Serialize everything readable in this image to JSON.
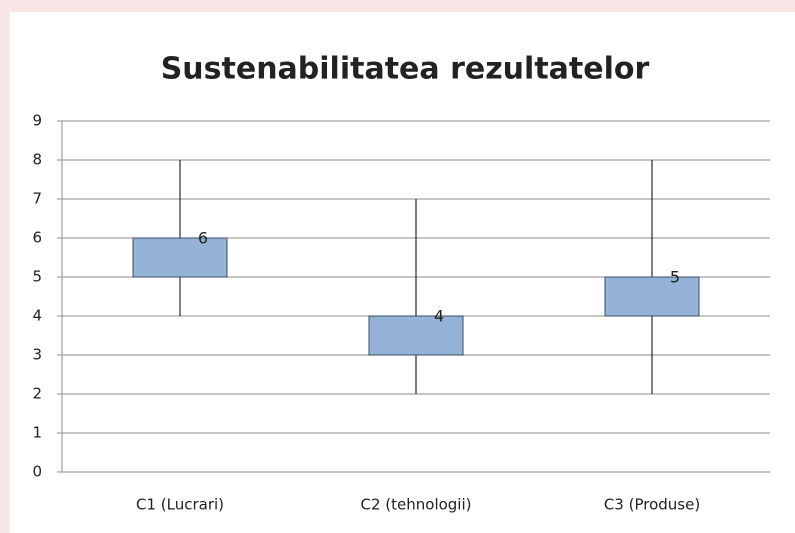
{
  "chart_data": {
    "type": "box",
    "title": "Sustenabilitatea rezultatelor",
    "categories": [
      "C1 (Lucrari)",
      "C2 (tehnologii)",
      "C3 (Produse)"
    ],
    "min": [
      4,
      2,
      2
    ],
    "q1": [
      5,
      3,
      4
    ],
    "q3": [
      6,
      4,
      5
    ],
    "max": [
      8,
      7,
      8
    ],
    "color": "#95b3d7",
    "ylim": [
      0,
      9
    ],
    "yticks": [
      0,
      1,
      2,
      3,
      4,
      5,
      6,
      7,
      8,
      9
    ],
    "grid": true
  }
}
